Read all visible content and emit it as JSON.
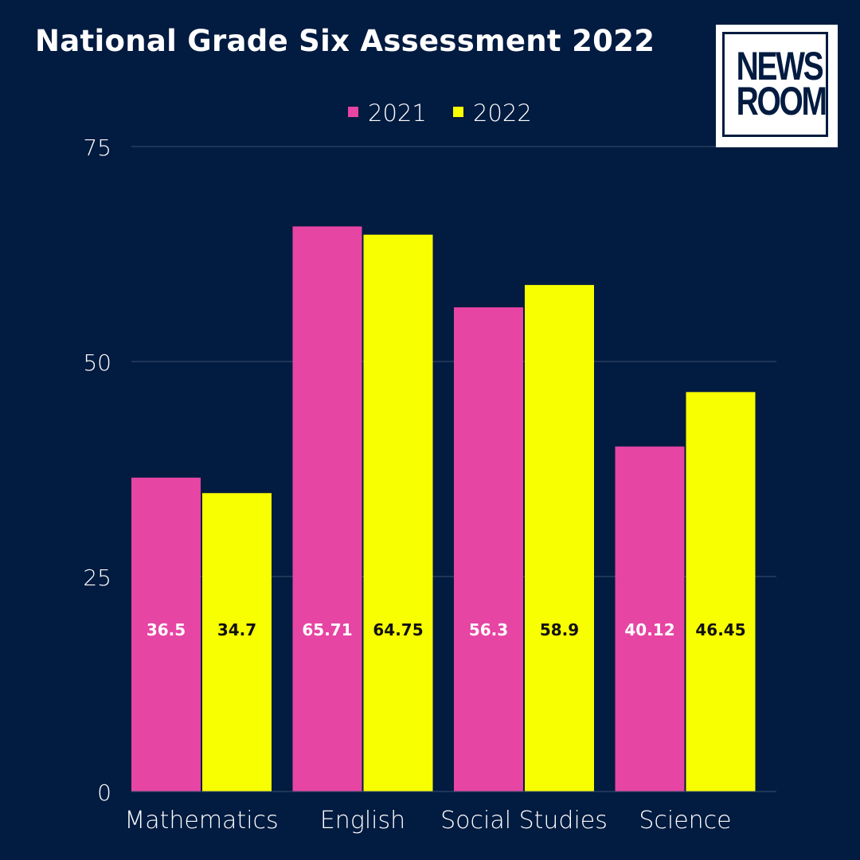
{
  "title": "National Grade Six Assessment 2022",
  "logo": {
    "line1": "NEWS",
    "line2": "ROOM"
  },
  "colors": {
    "background": "#021b40",
    "series_2021": "#e645a3",
    "series_2022": "#f8ff00",
    "gridline": "#3a4f70",
    "text": "#ffffff",
    "label_on_2022": "#111111"
  },
  "chart_data": {
    "type": "bar",
    "title": "National Grade Six Assessment 2022",
    "categories": [
      "Mathematics",
      "English",
      "Social Studies",
      "Science"
    ],
    "series": [
      {
        "name": "2021",
        "values": [
          36.5,
          65.71,
          56.3,
          40.12
        ],
        "labels": [
          "36.5",
          "65.71",
          "56.3",
          "40.12"
        ]
      },
      {
        "name": "2022",
        "values": [
          34.7,
          64.75,
          58.9,
          46.45
        ],
        "labels": [
          "34.7",
          "64.75",
          "58.9",
          "46.45"
        ]
      }
    ],
    "xlabel": "",
    "ylabel": "",
    "ylim": [
      0,
      75
    ],
    "yticks": [
      0,
      25,
      50,
      75
    ],
    "grid": true,
    "legend_position": "top-center"
  }
}
